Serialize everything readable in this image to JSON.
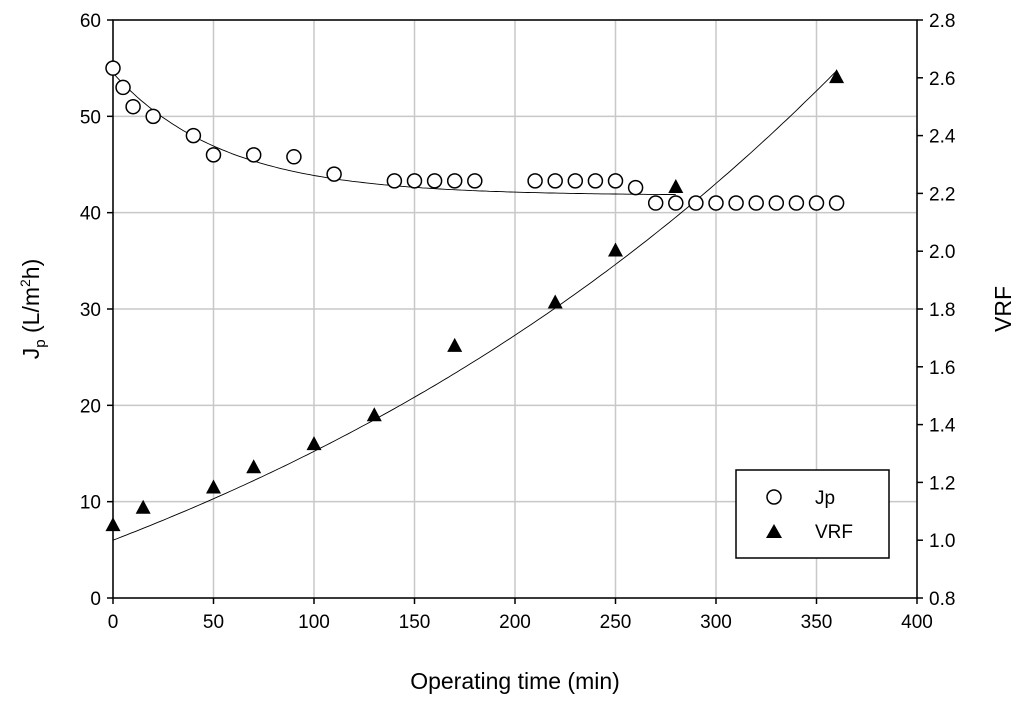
{
  "chart_data": {
    "type": "scatter",
    "x_axis": {
      "label": "Operating time (min)",
      "min": 0,
      "max": 400,
      "ticks": [
        0,
        50,
        100,
        150,
        200,
        250,
        300,
        350,
        400
      ]
    },
    "y_left": {
      "label_main": "J",
      "label_sub": "p",
      "label_rest": " (L/m",
      "label_sup": "2",
      "label_end": "h)",
      "min": 0,
      "max": 60,
      "ticks": [
        0,
        10,
        20,
        30,
        40,
        50,
        60
      ]
    },
    "y_right": {
      "label": "VRF",
      "min": 0.8,
      "max": 2.8,
      "ticks": [
        "0.8",
        "1.0",
        "1.2",
        "1.4",
        "1.6",
        "1.8",
        "2.0",
        "2.2",
        "2.4",
        "2.6",
        "2.8"
      ]
    },
    "grid": true,
    "legend": {
      "position": "bottom-right"
    },
    "series": [
      {
        "name": "Jp",
        "axis": "left",
        "marker": "open-circle",
        "points": [
          [
            0,
            55.0
          ],
          [
            5,
            53.0
          ],
          [
            10,
            51.0
          ],
          [
            20,
            50.0
          ],
          [
            40,
            48.0
          ],
          [
            50,
            46.0
          ],
          [
            70,
            46.0
          ],
          [
            90,
            45.8
          ],
          [
            110,
            44.0
          ],
          [
            140,
            43.3
          ],
          [
            150,
            43.3
          ],
          [
            160,
            43.3
          ],
          [
            170,
            43.3
          ],
          [
            180,
            43.3
          ],
          [
            210,
            43.3
          ],
          [
            220,
            43.3
          ],
          [
            230,
            43.3
          ],
          [
            240,
            43.3
          ],
          [
            250,
            43.3
          ],
          [
            260,
            42.6
          ],
          [
            270,
            41.0
          ],
          [
            280,
            41.0
          ],
          [
            290,
            41.0
          ],
          [
            300,
            41.0
          ],
          [
            310,
            41.0
          ],
          [
            320,
            41.0
          ],
          [
            330,
            41.0
          ],
          [
            340,
            41.0
          ],
          [
            350,
            41.0
          ],
          [
            360,
            41.0
          ]
        ],
        "fit": {
          "type": "exp-decay",
          "plateau": 41.8,
          "amplitude": 12.7,
          "tau": 55,
          "x_start": 0,
          "x_end": 280
        }
      },
      {
        "name": "VRF",
        "axis": "right",
        "marker": "filled-triangle",
        "points": [
          [
            0,
            1.05
          ],
          [
            15,
            1.11
          ],
          [
            50,
            1.18
          ],
          [
            70,
            1.25
          ],
          [
            100,
            1.33
          ],
          [
            130,
            1.43
          ],
          [
            170,
            1.67
          ],
          [
            220,
            1.82
          ],
          [
            250,
            2.0
          ],
          [
            280,
            2.22
          ],
          [
            360,
            2.6
          ]
        ],
        "fit": {
          "type": "exp-growth",
          "y0": 1.0,
          "k": 0.00268,
          "x_start": 0,
          "x_end": 360
        }
      }
    ]
  }
}
